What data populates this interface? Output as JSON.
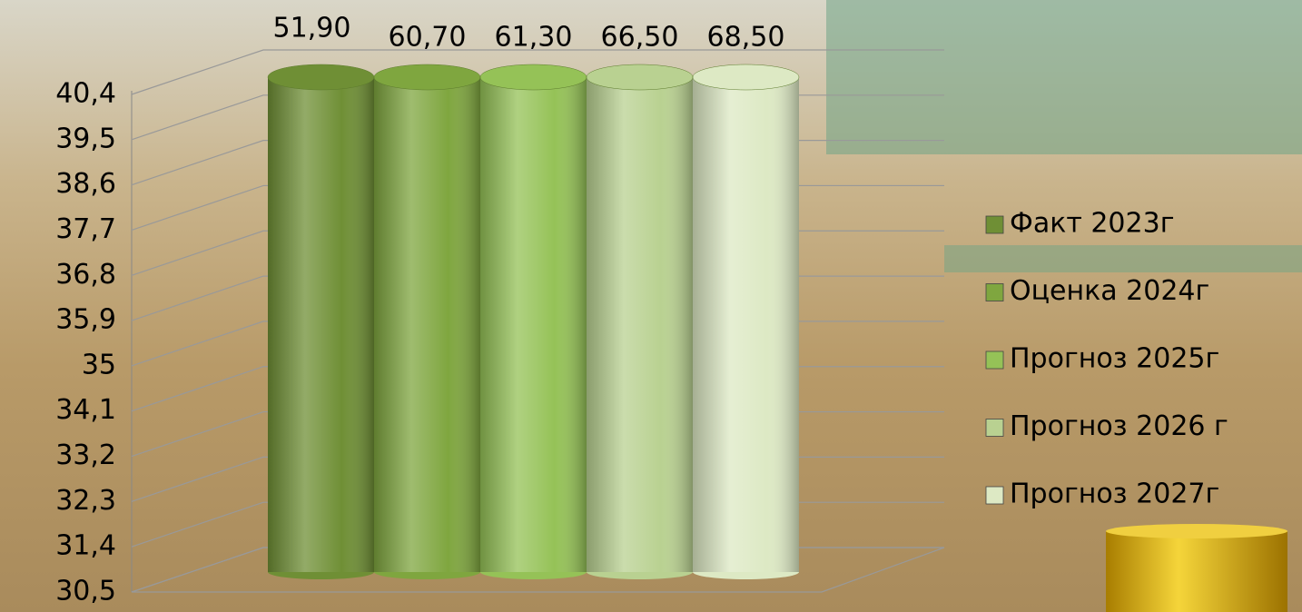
{
  "chart_data": {
    "type": "bar",
    "series": [
      {
        "name": "Факт 2023г",
        "color": "#6f8f35",
        "values": [
          51.9
        ],
        "value_labels": [
          "51,90"
        ]
      },
      {
        "name": "Оценка 2024г",
        "color": "#7fa63f",
        "values": [
          60.7
        ],
        "value_labels": [
          "60,70"
        ]
      },
      {
        "name": "Прогноз 2025г",
        "color": "#95c257",
        "values": [
          61.3
        ],
        "value_labels": [
          "61,30"
        ]
      },
      {
        "name": "Прогноз 2026 г",
        "color": "#b9d191",
        "values": [
          66.5
        ],
        "value_labels": [
          "66,50"
        ]
      },
      {
        "name": "Прогноз 2027г",
        "color": "#dde9c4",
        "values": [
          68.5
        ],
        "value_labels": [
          "68,50"
        ]
      }
    ],
    "ylim": [
      30.5,
      40.4
    ],
    "yticks": [
      {
        "value": 30.5,
        "label": "30,5"
      },
      {
        "value": 31.4,
        "label": "31,4"
      },
      {
        "value": 32.3,
        "label": "32,3"
      },
      {
        "value": 33.2,
        "label": "33,2"
      },
      {
        "value": 34.1,
        "label": "34,1"
      },
      35,
      {
        "value": 35.9,
        "label": "35,9"
      },
      {
        "value": 36.8,
        "label": "36,8"
      },
      {
        "value": 37.7,
        "label": "37,7"
      },
      {
        "value": 38.6,
        "label": "38,6"
      },
      {
        "value": 39.5,
        "label": "39,5"
      },
      {
        "value": 40.4,
        "label": "40,4"
      }
    ],
    "grid": true,
    "legend": "right"
  }
}
